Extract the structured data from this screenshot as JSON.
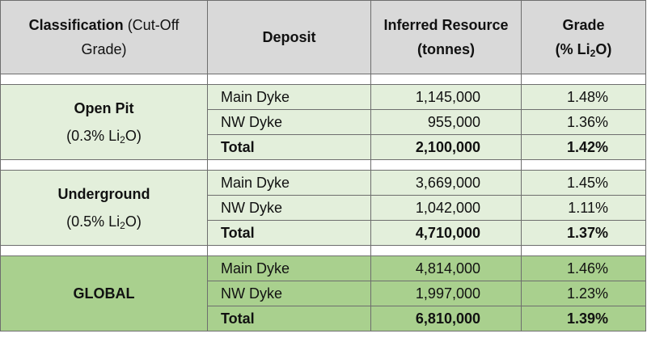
{
  "header": {
    "classification_bold": "Classification",
    "classification_rest_1": "(Cut-Off",
    "classification_rest_2": "Grade)",
    "deposit": "Deposit",
    "resource_1": "Inferred Resource",
    "resource_2": "(tonnes)",
    "grade_1": "Grade",
    "grade_2a": "(% Li",
    "grade_sub": "2",
    "grade_2b": "O)"
  },
  "groups": [
    {
      "name": "Open Pit",
      "cutoff_a": "(0.3% Li",
      "cutoff_sub": "2",
      "cutoff_b": "O)",
      "rows": [
        {
          "deposit": "Main Dyke",
          "tonnes": "1,145,000",
          "grade": "1.48%"
        },
        {
          "deposit": "NW Dyke",
          "tonnes": "955,000",
          "grade": "1.36%"
        },
        {
          "deposit": "Total",
          "tonnes": "2,100,000",
          "grade": "1.42%"
        }
      ]
    },
    {
      "name": "Underground",
      "cutoff_a": "(0.5% Li",
      "cutoff_sub": "2",
      "cutoff_b": "O)",
      "rows": [
        {
          "deposit": "Main Dyke",
          "tonnes": "3,669,000",
          "grade": "1.45%"
        },
        {
          "deposit": "NW Dyke",
          "tonnes": "1,042,000",
          "grade": "1.11%"
        },
        {
          "deposit": "Total",
          "tonnes": "4,710,000",
          "grade": "1.37%"
        }
      ]
    },
    {
      "name": "GLOBAL",
      "rows": [
        {
          "deposit": "Main Dyke",
          "tonnes": "4,814,000",
          "grade": "1.46%"
        },
        {
          "deposit": "NW Dyke",
          "tonnes": "1,997,000",
          "grade": "1.23%"
        },
        {
          "deposit": "Total",
          "tonnes": "6,810,000",
          "grade": "1.39%"
        }
      ]
    }
  ],
  "colors": {
    "header_bg": "#d9d9d9",
    "group_bg": "#e3efdb",
    "global_bg": "#a9d08e",
    "border": "#6e6e6e"
  }
}
